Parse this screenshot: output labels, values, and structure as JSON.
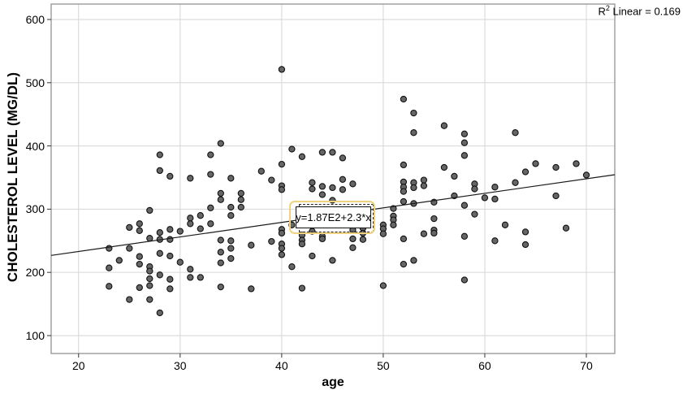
{
  "annotations": {
    "r2": {
      "prefix": "R",
      "sup": "2",
      "rest": " Linear = 0.169"
    }
  },
  "chart_data": {
    "type": "scatter",
    "title": "",
    "xlabel": "age",
    "ylabel": "CHOLESTEROL LEVEL (MG/DL)",
    "x_ticks": [
      20,
      30,
      40,
      50,
      60,
      70
    ],
    "y_ticks": [
      100,
      200,
      300,
      400,
      500,
      600
    ],
    "xlim": [
      17.3,
      72.8
    ],
    "ylim": [
      71.7,
      624.4
    ],
    "grid": true,
    "legend": "none",
    "colors": {
      "point_fill": "#666666",
      "point_stroke": "#111111",
      "fit_line": "#1a1a1a",
      "grid": "#d6d6d6",
      "frame": "#8a8a8a",
      "tick": "#333333",
      "highlight": "#eed27e"
    },
    "fit_line": {
      "label": "y=1.87E2+2.3*x",
      "intercept": 187,
      "slope": 2.3,
      "r2": 0.169
    },
    "points": [
      [
        40,
        521
      ],
      [
        52,
        474
      ],
      [
        53,
        452
      ],
      [
        34,
        404
      ],
      [
        28,
        386
      ],
      [
        33,
        386
      ],
      [
        28,
        361
      ],
      [
        29,
        352
      ],
      [
        31,
        349
      ],
      [
        33,
        355
      ],
      [
        35,
        349
      ],
      [
        34,
        325
      ],
      [
        34,
        315
      ],
      [
        33,
        302
      ],
      [
        35,
        303
      ],
      [
        35,
        290
      ],
      [
        27,
        298
      ],
      [
        31,
        286
      ],
      [
        32,
        290
      ],
      [
        31,
        277
      ],
      [
        33,
        277
      ],
      [
        25,
        271
      ],
      [
        26,
        277
      ],
      [
        26,
        266
      ],
      [
        28,
        263
      ],
      [
        29,
        268
      ],
      [
        30,
        265
      ],
      [
        32,
        269
      ],
      [
        53,
        421
      ],
      [
        41,
        395
      ],
      [
        42,
        383
      ],
      [
        44,
        390
      ],
      [
        45,
        390
      ],
      [
        46,
        381
      ],
      [
        40,
        371
      ],
      [
        52,
        370
      ],
      [
        38,
        360
      ],
      [
        39,
        346
      ],
      [
        40,
        337
      ],
      [
        40,
        331
      ],
      [
        43,
        342
      ],
      [
        43,
        332
      ],
      [
        44,
        336
      ],
      [
        45,
        334
      ],
      [
        46,
        347
      ],
      [
        47,
        340
      ],
      [
        46,
        331
      ],
      [
        44,
        323
      ],
      [
        45,
        314
      ],
      [
        52,
        343
      ],
      [
        52,
        335
      ],
      [
        52,
        328
      ],
      [
        53,
        342
      ],
      [
        53,
        334
      ],
      [
        36,
        325
      ],
      [
        36,
        315
      ],
      [
        36,
        303
      ],
      [
        41,
        275
      ],
      [
        40,
        268
      ],
      [
        40,
        262
      ],
      [
        42,
        259
      ],
      [
        43,
        265
      ],
      [
        44,
        257
      ],
      [
        47,
        275
      ],
      [
        47,
        267
      ],
      [
        48,
        270
      ],
      [
        48,
        262
      ],
      [
        50,
        275
      ],
      [
        50,
        269
      ],
      [
        50,
        261
      ],
      [
        51,
        301
      ],
      [
        51,
        289
      ],
      [
        51,
        283
      ],
      [
        51,
        275
      ],
      [
        52,
        312
      ],
      [
        53,
        309
      ],
      [
        54,
        346
      ],
      [
        54,
        337
      ],
      [
        56,
        432
      ],
      [
        58,
        419
      ],
      [
        58,
        405
      ],
      [
        63,
        421
      ],
      [
        58,
        385
      ],
      [
        56,
        366
      ],
      [
        57,
        352
      ],
      [
        65,
        372
      ],
      [
        67,
        366
      ],
      [
        69,
        372
      ],
      [
        64,
        359
      ],
      [
        70,
        354
      ],
      [
        59,
        340
      ],
      [
        59,
        332
      ],
      [
        61,
        335
      ],
      [
        63,
        342
      ],
      [
        57,
        321
      ],
      [
        60,
        318
      ],
      [
        61,
        316
      ],
      [
        55,
        311
      ],
      [
        58,
        306
      ],
      [
        67,
        321
      ],
      [
        59,
        292
      ],
      [
        55,
        285
      ],
      [
        55,
        267
      ],
      [
        55,
        262
      ],
      [
        62,
        275
      ],
      [
        68,
        270
      ],
      [
        64,
        264
      ],
      [
        58,
        257
      ],
      [
        54,
        261
      ],
      [
        23,
        238
      ],
      [
        25,
        238
      ],
      [
        24,
        219
      ],
      [
        26,
        225
      ],
      [
        23,
        207
      ],
      [
        27,
        254
      ],
      [
        28,
        252
      ],
      [
        29,
        252
      ],
      [
        28,
        230
      ],
      [
        29,
        226
      ],
      [
        26,
        213
      ],
      [
        27,
        209
      ],
      [
        27,
        202
      ],
      [
        28,
        196
      ],
      [
        29,
        189
      ],
      [
        27,
        190
      ],
      [
        30,
        216
      ],
      [
        31,
        205
      ],
      [
        31,
        192
      ],
      [
        32,
        192
      ],
      [
        23,
        178
      ],
      [
        26,
        176
      ],
      [
        27,
        179
      ],
      [
        29,
        174
      ],
      [
        25,
        157
      ],
      [
        27,
        157
      ],
      [
        28,
        136
      ],
      [
        34,
        251
      ],
      [
        35,
        250
      ],
      [
        35,
        238
      ],
      [
        34,
        232
      ],
      [
        35,
        222
      ],
      [
        34,
        215
      ],
      [
        34,
        177
      ],
      [
        37,
        243
      ],
      [
        39,
        249
      ],
      [
        40,
        245
      ],
      [
        40,
        238
      ],
      [
        40,
        228
      ],
      [
        42,
        251
      ],
      [
        42,
        245
      ],
      [
        44,
        253
      ],
      [
        43,
        226
      ],
      [
        45,
        219
      ],
      [
        47,
        253
      ],
      [
        48,
        252
      ],
      [
        47,
        239
      ],
      [
        41,
        209
      ],
      [
        37,
        174
      ],
      [
        42,
        175
      ],
      [
        50,
        179
      ],
      [
        52,
        253
      ],
      [
        52,
        213
      ],
      [
        53,
        219
      ],
      [
        61,
        250
      ],
      [
        64,
        244
      ],
      [
        58,
        188
      ]
    ]
  }
}
